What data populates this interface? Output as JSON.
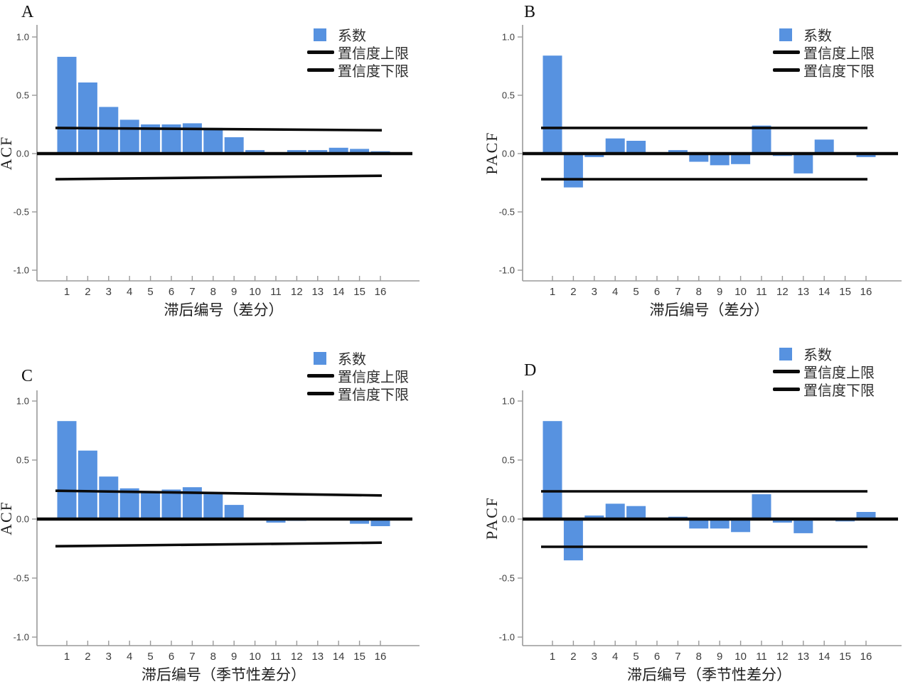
{
  "colors": {
    "bar": "#5792E0",
    "ci_line": "#0a0a0a",
    "zero_line": "#0a0a0a",
    "axis": "#9a9a9a",
    "tick_text": "#3c3c3c",
    "label_text": "#1f1f1f"
  },
  "legend": {
    "coefficient": "系数",
    "upper_ci": "置信度上限",
    "lower_ci": "置信度下限"
  },
  "chart_data": [
    {
      "type": "bar",
      "panel_label": "A",
      "ylabel": "ACF",
      "xlabel": "滞后编号（差分）",
      "x": [
        1,
        2,
        3,
        4,
        5,
        6,
        7,
        8,
        9,
        10,
        11,
        12,
        13,
        14,
        15,
        16
      ],
      "values": [
        0.83,
        0.61,
        0.4,
        0.29,
        0.25,
        0.25,
        0.26,
        0.22,
        0.14,
        0.03,
        0.0,
        0.03,
        0.03,
        0.05,
        0.04,
        0.02
      ],
      "ci_upper": [
        0.22,
        0.2
      ],
      "ci_lower": [
        -0.22,
        -0.19
      ],
      "zero_line": 0.0,
      "yticks": [
        1.0,
        0.5,
        0.0,
        -0.5,
        -1.0
      ],
      "ylim": [
        -1.1,
        1.1
      ],
      "grid": false,
      "legend_position": "top-right"
    },
    {
      "type": "bar",
      "panel_label": "B",
      "ylabel": "PACF",
      "xlabel": "滞后编号（差分）",
      "x": [
        1,
        2,
        3,
        4,
        5,
        6,
        7,
        8,
        9,
        10,
        11,
        12,
        13,
        14,
        15,
        16
      ],
      "values": [
        0.84,
        -0.29,
        -0.03,
        0.13,
        0.11,
        0.01,
        0.03,
        -0.07,
        -0.1,
        -0.09,
        0.24,
        -0.02,
        -0.17,
        0.12,
        0.0,
        -0.03
      ],
      "ci_upper": [
        0.22,
        0.22
      ],
      "ci_lower": [
        -0.22,
        -0.22
      ],
      "zero_line": 0.0,
      "yticks": [
        1.0,
        0.5,
        0.0,
        -0.5,
        -1.0
      ],
      "ylim": [
        -1.1,
        1.1
      ],
      "grid": false,
      "legend_position": "top-right"
    },
    {
      "type": "bar",
      "panel_label": "C",
      "ylabel": "ACF",
      "xlabel": "滞后编号（季节性差分）",
      "x": [
        1,
        2,
        3,
        4,
        5,
        6,
        7,
        8,
        9,
        10,
        11,
        12,
        13,
        14,
        15,
        16
      ],
      "values": [
        0.83,
        0.58,
        0.36,
        0.26,
        0.22,
        0.25,
        0.27,
        0.21,
        0.12,
        0.0,
        -0.03,
        -0.015,
        0.0,
        0.0,
        -0.04,
        -0.06
      ],
      "ci_upper": [
        0.24,
        0.2
      ],
      "ci_lower": [
        -0.23,
        -0.2
      ],
      "zero_line": 0.0,
      "yticks": [
        1.0,
        0.5,
        0.0,
        -0.5,
        -1.0
      ],
      "ylim": [
        -1.1,
        1.1
      ],
      "grid": false,
      "legend_position": "top-right"
    },
    {
      "type": "bar",
      "panel_label": "D",
      "ylabel": "PACF",
      "xlabel": "滞后编号（季节性差分）",
      "x": [
        1,
        2,
        3,
        4,
        5,
        6,
        7,
        8,
        9,
        10,
        11,
        12,
        13,
        14,
        15,
        16
      ],
      "values": [
        0.83,
        -0.35,
        0.03,
        0.13,
        0.11,
        0.0,
        0.02,
        -0.08,
        -0.08,
        -0.11,
        0.21,
        -0.03,
        -0.12,
        0.0,
        -0.02,
        0.06
      ],
      "ci_upper": [
        0.235,
        0.235
      ],
      "ci_lower": [
        -0.235,
        -0.235
      ],
      "zero_line": 0.0,
      "yticks": [
        1.0,
        0.5,
        0.0,
        -0.5,
        -1.0
      ],
      "ylim": [
        -1.1,
        1.1
      ],
      "grid": false,
      "legend_position": "top-right"
    }
  ]
}
